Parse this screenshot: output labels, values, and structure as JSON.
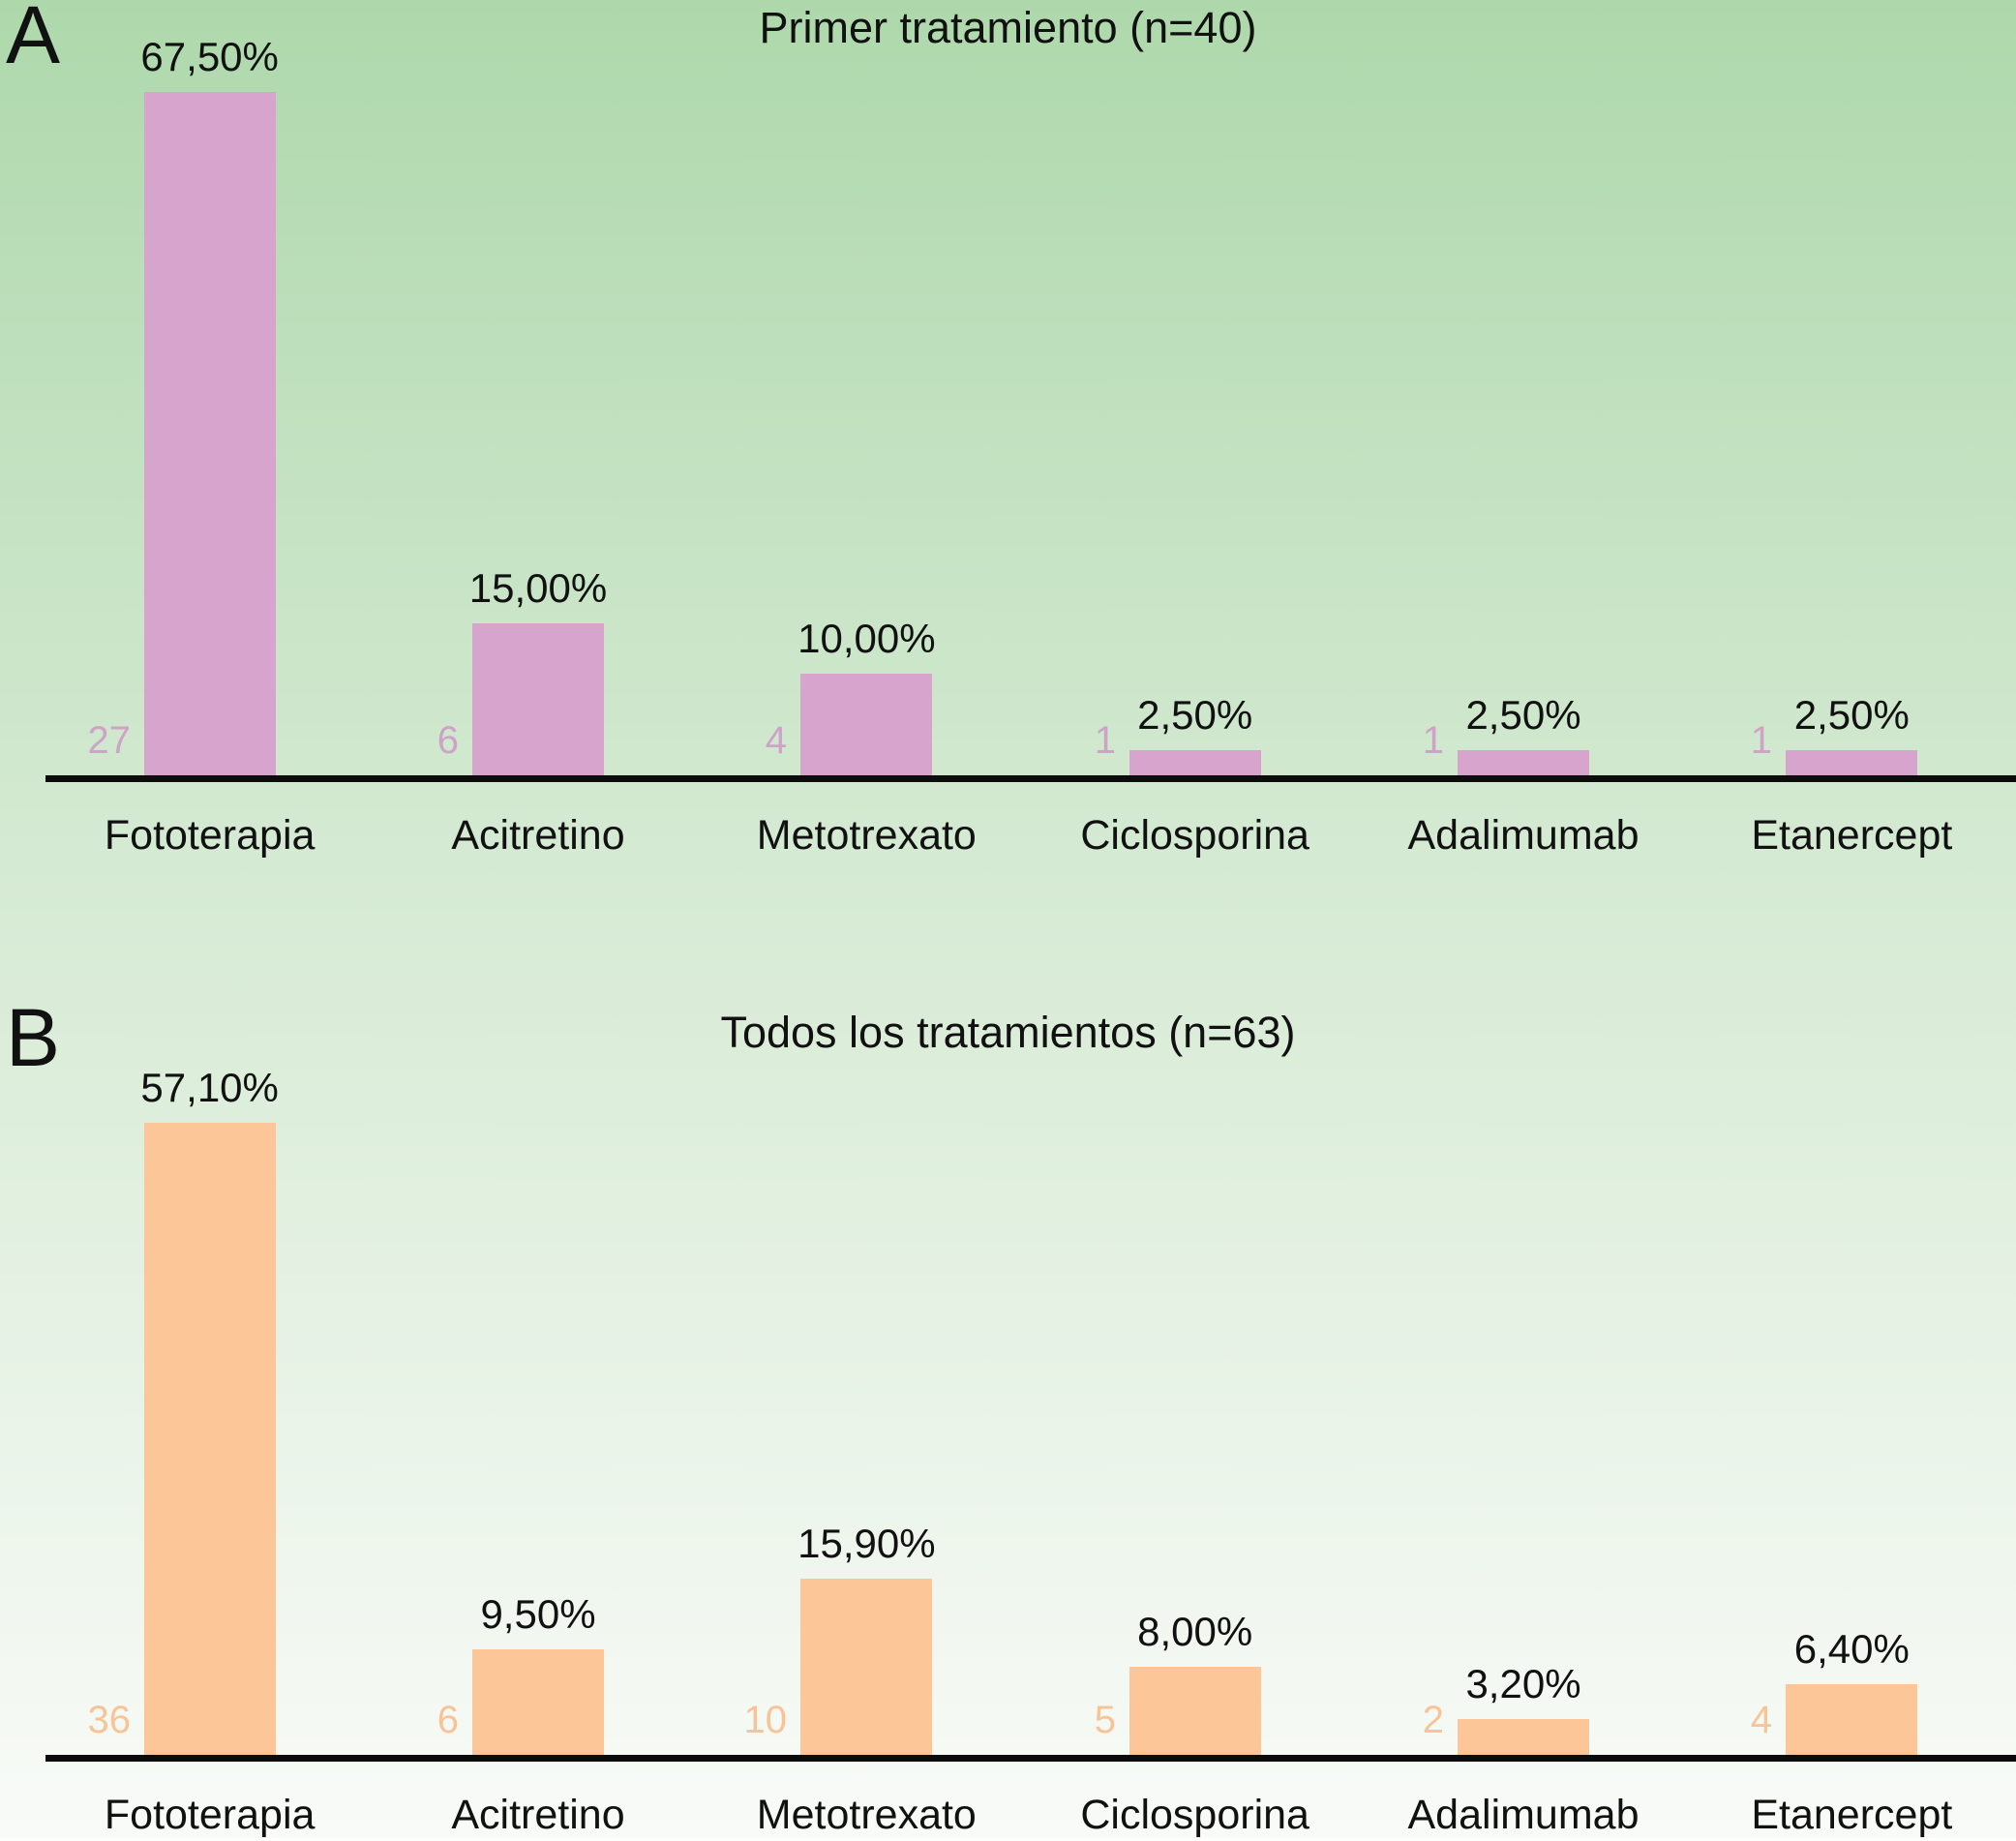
{
  "figure": {
    "background_top_color": "#aed8ac",
    "background_middle_color": "#d5ead3",
    "background_bottom_color": "#f9fbf8",
    "axis_color": "#0c0c0c",
    "text_color": "#111111"
  },
  "chart_data": [
    {
      "type": "bar",
      "panel_label": "A",
      "title": "Primer tratamiento (n=40)",
      "categories": [
        "Fototerapia",
        "Acitretino",
        "Metotrexato",
        "Ciclosporina",
        "Adalimumab",
        "Etanercept"
      ],
      "values_percent": [
        67.5,
        15.0,
        10.0,
        2.5,
        2.5,
        2.5
      ],
      "value_labels": [
        "67,50%",
        "15,00%",
        "10,00%",
        "2,50%",
        "2,50%",
        "2,50%"
      ],
      "counts": [
        "27",
        "6",
        "4",
        "1",
        "1",
        "1"
      ],
      "bar_color": "#d7a4cd",
      "count_label_color": "#cfa3c8",
      "ylim": [
        0,
        70
      ],
      "grid": false,
      "legend": null
    },
    {
      "type": "bar",
      "panel_label": "B",
      "title": "Todos los tratamientos (n=63)",
      "categories": [
        "Fototerapia",
        "Acitretino",
        "Metotrexato",
        "Ciclosporina",
        "Adalimumab",
        "Etanercept"
      ],
      "values_percent": [
        57.1,
        9.5,
        15.9,
        8.0,
        3.2,
        6.4
      ],
      "value_labels": [
        "57,10%",
        "9,50%",
        "15,90%",
        "8,00%",
        "3,20%",
        "6,40%"
      ],
      "counts": [
        "36",
        "6",
        "10",
        "5",
        "2",
        "4"
      ],
      "bar_color": "#fcc699",
      "count_label_color": "#f9c398",
      "ylim": [
        0,
        60
      ],
      "grid": false,
      "legend": null
    }
  ]
}
